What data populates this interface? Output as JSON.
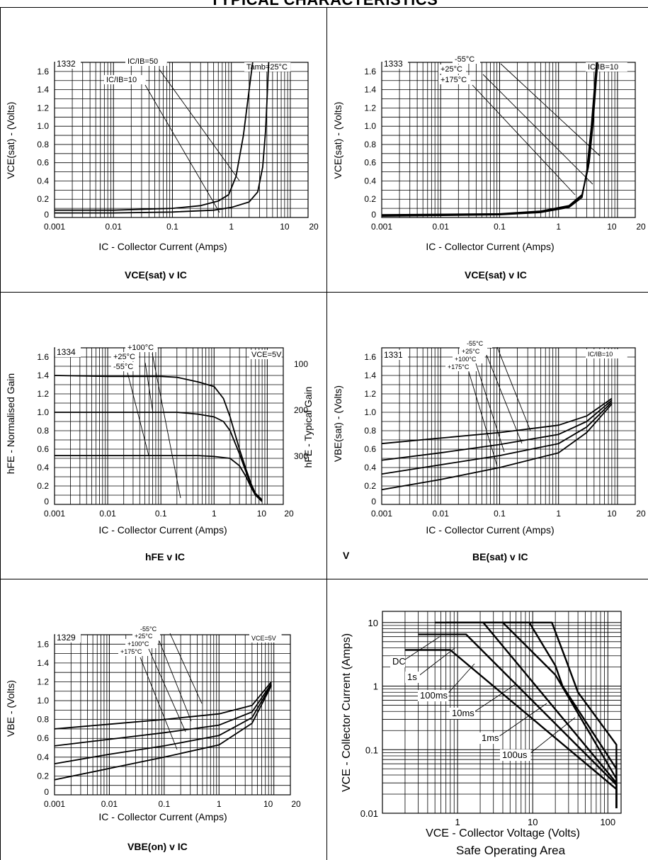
{
  "page": {
    "title": "TYPICAL CHARACTERISTICS"
  },
  "chart_data": [
    {
      "id": "c1332",
      "type": "line",
      "figure_no": "1332",
      "title": "VCE(sat) v IC",
      "xlabel": "IC - Collector Current (Amps)",
      "ylabel": "VCE(sat) - (Volts)",
      "xscale": "log",
      "xlim": [
        0.001,
        20
      ],
      "ylim": [
        0,
        1.7
      ],
      "xticks": [
        "0.001",
        "0.01",
        "0.1",
        "1",
        "10",
        "20"
      ],
      "yticks": [
        "0",
        "0.2",
        "0.4",
        "0.6",
        "0.8",
        "1.0",
        "1.2",
        "1.4",
        "1.6"
      ],
      "annotations": [
        "IC/IB=50",
        "IC/IB=10",
        "Tamb=25°C"
      ],
      "series": [
        {
          "name": "IC/IB=50",
          "x": [
            0.001,
            0.01,
            0.1,
            0.3,
            0.6,
            0.9,
            1.2,
            1.6,
            2.0,
            2.3
          ],
          "y": [
            0.08,
            0.08,
            0.1,
            0.13,
            0.18,
            0.25,
            0.45,
            0.9,
            1.4,
            1.7
          ]
        },
        {
          "name": "IC/IB=10",
          "x": [
            0.001,
            0.01,
            0.1,
            0.5,
            1.0,
            2.0,
            2.8,
            3.4,
            3.8,
            4.1,
            4.3
          ],
          "y": [
            0.05,
            0.05,
            0.06,
            0.08,
            0.11,
            0.17,
            0.28,
            0.55,
            0.95,
            1.4,
            1.7
          ]
        }
      ]
    },
    {
      "id": "c1333",
      "type": "line",
      "figure_no": "1333",
      "title": "VCE(sat) v IC",
      "xlabel": "IC - Collector Current (Amps)",
      "ylabel": "VCE(sat) - (Volts)",
      "xscale": "log",
      "xlim": [
        0.001,
        20
      ],
      "ylim": [
        0,
        1.7
      ],
      "xticks": [
        "0.001",
        "0.01",
        "0.1",
        "1",
        "10",
        "20"
      ],
      "yticks": [
        "0",
        "0.2",
        "0.4",
        "0.6",
        "0.8",
        "1.0",
        "1.2",
        "1.4",
        "1.6"
      ],
      "annotations": [
        "-55°C",
        "+25°C",
        "+175°C",
        "IC/IB=10"
      ],
      "series": [
        {
          "name": "-55°C",
          "x": [
            0.001,
            0.1,
            0.5,
            1.5,
            2.5,
            3.3,
            3.8,
            4.3,
            4.6
          ],
          "y": [
            0.03,
            0.04,
            0.07,
            0.13,
            0.25,
            0.6,
            1.0,
            1.45,
            1.7
          ]
        },
        {
          "name": "+25°C",
          "x": [
            0.001,
            0.1,
            0.5,
            1.5,
            2.5,
            3.2,
            3.7,
            4.2,
            4.5
          ],
          "y": [
            0.02,
            0.035,
            0.06,
            0.12,
            0.24,
            0.55,
            1.0,
            1.45,
            1.7
          ]
        },
        {
          "name": "+175°C",
          "x": [
            0.001,
            0.1,
            0.5,
            1.5,
            2.5,
            3.0,
            3.6,
            4.1,
            4.4
          ],
          "y": [
            0.015,
            0.03,
            0.055,
            0.11,
            0.22,
            0.5,
            1.0,
            1.45,
            1.7
          ]
        }
      ]
    },
    {
      "id": "c1334",
      "type": "line",
      "figure_no": "1334",
      "title": "hFE v IC",
      "xlabel": "IC - Collector Current (Amps)",
      "ylabel": "hFE - Normalised Gain",
      "ylabel_right": "hFE - Typical Gain",
      "xscale": "log",
      "xlim": [
        0.001,
        20
      ],
      "ylim": [
        0,
        1.7
      ],
      "xticks": [
        "0.001",
        "0.01",
        "0.1",
        "1",
        "10",
        "20"
      ],
      "yticks": [
        "0",
        "0.2",
        "0.4",
        "0.6",
        "0.8",
        "1.0",
        "1.2",
        "1.4",
        "1.6"
      ],
      "yticks_right": [
        "100",
        "200",
        "300"
      ],
      "annotations": [
        "+100°C",
        "+25°C",
        "-55°C",
        "VCE=5V"
      ],
      "series": [
        {
          "name": "+100°C",
          "x": [
            0.001,
            0.01,
            0.1,
            0.2,
            0.5,
            1.0,
            1.5,
            2.0,
            3.0,
            4.0,
            5.0,
            6.0,
            8.0
          ],
          "y": [
            1.4,
            1.39,
            1.39,
            1.38,
            1.33,
            1.28,
            1.15,
            0.95,
            0.6,
            0.38,
            0.22,
            0.12,
            0.05
          ]
        },
        {
          "name": "+25°C",
          "x": [
            0.001,
            0.01,
            0.1,
            0.2,
            0.5,
            1.0,
            1.5,
            2.0,
            3.0,
            4.0,
            5.0,
            6.0,
            8.0
          ],
          "y": [
            1.0,
            1.0,
            1.0,
            1.0,
            0.98,
            0.95,
            0.9,
            0.8,
            0.55,
            0.35,
            0.2,
            0.11,
            0.04
          ]
        },
        {
          "name": "-55°C",
          "x": [
            0.001,
            0.01,
            0.1,
            0.5,
            1.0,
            2.0,
            3.0,
            4.0,
            5.0,
            6.0,
            8.0
          ],
          "y": [
            0.53,
            0.53,
            0.53,
            0.53,
            0.52,
            0.5,
            0.42,
            0.3,
            0.18,
            0.1,
            0.03
          ]
        }
      ]
    },
    {
      "id": "c1331",
      "type": "line",
      "figure_no": "1331",
      "title": "VBE(sat) v IC",
      "title_lead": "V",
      "title_rest": "BE(sat) v IC",
      "xlabel": "IC - Collector Current (Amps)",
      "ylabel": "VBE(sat) - (Volts)",
      "xscale": "log",
      "xlim": [
        0.001,
        20
      ],
      "ylim": [
        0,
        1.7
      ],
      "xticks": [
        "0.001",
        "0.01",
        "0.1",
        "1",
        "10",
        "20"
      ],
      "yticks": [
        "0",
        "0.2",
        "0.4",
        "0.6",
        "0.8",
        "1.0",
        "1.2",
        "1.4",
        "1.6"
      ],
      "annotations": [
        "-55°C",
        "+25°C",
        "+100°C",
        "+175°C",
        "IC/IB=10"
      ],
      "series": [
        {
          "name": "-55°C",
          "x": [
            0.001,
            0.01,
            0.1,
            1,
            3,
            8
          ],
          "y": [
            0.66,
            0.72,
            0.78,
            0.86,
            0.96,
            1.15
          ]
        },
        {
          "name": "+25°C",
          "x": [
            0.001,
            0.01,
            0.1,
            1,
            3,
            8
          ],
          "y": [
            0.48,
            0.56,
            0.65,
            0.76,
            0.9,
            1.13
          ]
        },
        {
          "name": "+100°C",
          "x": [
            0.001,
            0.01,
            0.1,
            1,
            3,
            8
          ],
          "y": [
            0.33,
            0.43,
            0.53,
            0.66,
            0.84,
            1.11
          ]
        },
        {
          "name": "+175°C",
          "x": [
            0.001,
            0.01,
            0.1,
            1,
            3,
            8
          ],
          "y": [
            0.16,
            0.27,
            0.4,
            0.56,
            0.78,
            1.09
          ]
        }
      ]
    },
    {
      "id": "c1329",
      "type": "line",
      "figure_no": "1329",
      "title": "VBE(on) v IC",
      "xlabel": "IC - Collector Current (Amps)",
      "ylabel": "VBE - (Volts)",
      "xscale": "log",
      "xlim": [
        0.001,
        20
      ],
      "ylim": [
        0,
        1.7
      ],
      "xticks": [
        "0.001",
        "0.01",
        "0.1",
        "1",
        "10",
        "20"
      ],
      "yticks": [
        "0",
        "0.2",
        "0.4",
        "0.6",
        "0.8",
        "1.0",
        "1.2",
        "1.4",
        "1.6"
      ],
      "annotations": [
        "-55°C",
        "+25°C",
        "+100°C",
        "+175°C",
        "VCE=5V"
      ],
      "series": [
        {
          "name": "-55°C",
          "x": [
            0.001,
            0.01,
            0.1,
            1,
            4,
            9
          ],
          "y": [
            0.7,
            0.75,
            0.8,
            0.86,
            0.95,
            1.2
          ]
        },
        {
          "name": "+25°C",
          "x": [
            0.001,
            0.01,
            0.1,
            1,
            4,
            9
          ],
          "y": [
            0.52,
            0.59,
            0.66,
            0.74,
            0.88,
            1.18
          ]
        },
        {
          "name": "+100°C",
          "x": [
            0.001,
            0.01,
            0.1,
            1,
            4,
            9
          ],
          "y": [
            0.33,
            0.43,
            0.52,
            0.63,
            0.82,
            1.17
          ]
        },
        {
          "name": "+175°C",
          "x": [
            0.001,
            0.01,
            0.1,
            1,
            4,
            9
          ],
          "y": [
            0.16,
            0.28,
            0.4,
            0.53,
            0.76,
            1.16
          ]
        }
      ]
    },
    {
      "id": "soa",
      "type": "line",
      "title": "Safe Operating Area",
      "xlabel": "VCE - Collector Voltage (Volts)",
      "ylabel": "VCE - Collector Current (Amps)",
      "xscale": "log",
      "yscale": "log",
      "xlim": [
        0.1,
        150
      ],
      "ylim": [
        0.01,
        15
      ],
      "xticks": [
        "1",
        "10",
        "100"
      ],
      "yticks": [
        "0.01",
        "0.1",
        "1",
        "10"
      ],
      "annotations": [
        "DC",
        "1s",
        "100ms",
        "10ms",
        "1ms",
        "100us"
      ],
      "series": [
        {
          "name": "DC",
          "x": [
            0.2,
            0.8,
            130,
            130
          ],
          "y": [
            3.7,
            3.7,
            0.024,
            0.012
          ]
        },
        {
          "name": "1s",
          "x": [
            0.3,
            1.3,
            130,
            130
          ],
          "y": [
            6.5,
            6.5,
            0.028,
            0.012
          ]
        },
        {
          "name": "100ms",
          "x": [
            0.5,
            2.2,
            130,
            130
          ],
          "y": [
            10,
            10,
            0.03,
            0.012
          ]
        },
        {
          "name": "10ms",
          "x": [
            0.7,
            4.0,
            20,
            130,
            130
          ],
          "y": [
            10,
            10,
            1.5,
            0.035,
            0.012
          ]
        },
        {
          "name": "1ms",
          "x": [
            0.7,
            9,
            20,
            25,
            130,
            130
          ],
          "y": [
            10,
            10,
            2.1,
            1.0,
            0.05,
            0.012
          ]
        },
        {
          "name": "100us",
          "x": [
            0.7,
            18,
            28,
            40,
            130,
            130
          ],
          "y": [
            10,
            10,
            2.5,
            0.8,
            0.12,
            0.012
          ]
        }
      ]
    }
  ]
}
